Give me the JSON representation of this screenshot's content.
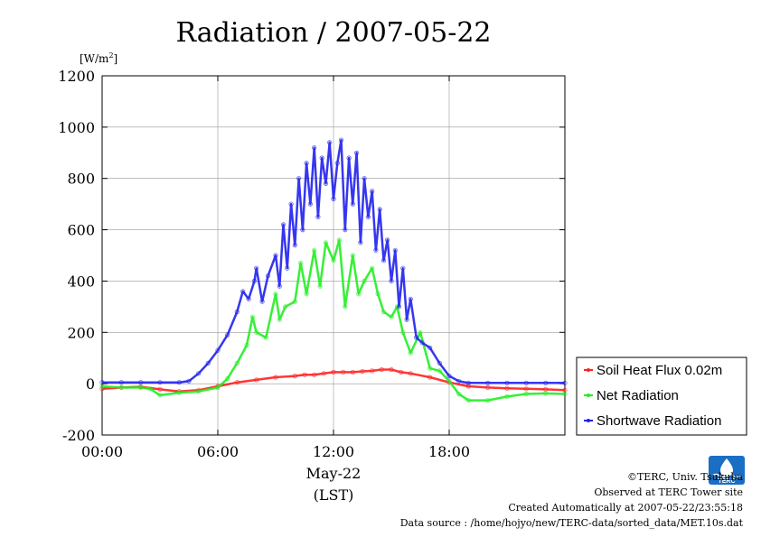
{
  "chart_data": {
    "type": "line",
    "title": "Radiation / 2007-05-22",
    "ylabel": "[W/m²]",
    "ylabel_base": "[W/m",
    "ylabel_sup": "2",
    "ylabel_close": "]",
    "xlabel_date": "May-22",
    "xlabel_unit": "(LST)",
    "xlim": [
      0,
      24
    ],
    "ylim": [
      -200,
      1200
    ],
    "grid": true,
    "legend_position": "right-bottom",
    "x_ticks": [
      {
        "value": 0,
        "label": "00:00"
      },
      {
        "value": 6,
        "label": "06:00"
      },
      {
        "value": 12,
        "label": "12:00"
      },
      {
        "value": 18,
        "label": "18:00"
      }
    ],
    "y_ticks": [
      {
        "value": -200,
        "label": "-200"
      },
      {
        "value": 0,
        "label": "0"
      },
      {
        "value": 200,
        "label": "200"
      },
      {
        "value": 400,
        "label": "400"
      },
      {
        "value": 600,
        "label": "600"
      },
      {
        "value": 800,
        "label": "800"
      },
      {
        "value": 1000,
        "label": "1000"
      },
      {
        "value": 1200,
        "label": "1200"
      }
    ],
    "series": [
      {
        "name": "Soil Heat Flux 0.02m",
        "color": "#ff2020",
        "x": [
          0,
          1,
          2,
          3,
          4,
          5,
          6,
          7,
          8,
          9,
          10,
          10.5,
          11,
          11.5,
          12,
          12.5,
          13,
          13.5,
          14,
          14.5,
          15,
          15.5,
          16,
          17,
          18,
          19,
          20,
          21,
          22,
          23,
          24
        ],
        "y": [
          -20,
          -15,
          -12,
          -22,
          -30,
          -25,
          -10,
          5,
          15,
          25,
          30,
          35,
          35,
          40,
          45,
          45,
          45,
          48,
          50,
          55,
          55,
          45,
          40,
          25,
          5,
          -10,
          -15,
          -18,
          -20,
          -22,
          -25
        ]
      },
      {
        "name": "Net Radiation",
        "color": "#20ee20",
        "x": [
          0,
          1,
          2,
          2.5,
          3,
          4,
          5,
          6,
          6.5,
          7,
          7.5,
          7.8,
          8,
          8.5,
          9,
          9.2,
          9.5,
          10,
          10.3,
          10.6,
          11,
          11.3,
          11.6,
          12,
          12.3,
          12.6,
          13,
          13.3,
          13.6,
          14,
          14.3,
          14.6,
          15,
          15.3,
          15.6,
          16,
          16.5,
          17,
          17.5,
          18,
          18.5,
          19,
          20,
          21,
          22,
          23,
          24
        ],
        "y": [
          -10,
          -15,
          -15,
          -20,
          -45,
          -35,
          -30,
          -15,
          20,
          80,
          150,
          260,
          200,
          180,
          350,
          250,
          300,
          320,
          470,
          350,
          520,
          380,
          550,
          480,
          560,
          300,
          500,
          350,
          400,
          450,
          350,
          280,
          260,
          300,
          200,
          120,
          200,
          60,
          50,
          10,
          -40,
          -65,
          -65,
          -50,
          -40,
          -38,
          -40
        ]
      },
      {
        "name": "Shortwave Radiation",
        "color": "#2020ee",
        "x": [
          0,
          1,
          2,
          3,
          4,
          4.5,
          5,
          5.5,
          6,
          6.5,
          7,
          7.3,
          7.6,
          7.9,
          8,
          8.3,
          8.6,
          9,
          9.2,
          9.4,
          9.6,
          9.8,
          10,
          10.2,
          10.4,
          10.6,
          10.8,
          11,
          11.2,
          11.4,
          11.6,
          11.8,
          12,
          12.2,
          12.4,
          12.6,
          12.8,
          13,
          13.2,
          13.4,
          13.6,
          13.8,
          14,
          14.2,
          14.4,
          14.6,
          14.8,
          15,
          15.2,
          15.4,
          15.6,
          15.8,
          16,
          16.3,
          16.6,
          17,
          17.5,
          18,
          18.5,
          19,
          20,
          21,
          22,
          23,
          24
        ],
        "y": [
          5,
          5,
          5,
          5,
          5,
          10,
          40,
          80,
          130,
          190,
          280,
          360,
          330,
          400,
          450,
          320,
          420,
          500,
          380,
          620,
          450,
          700,
          540,
          800,
          600,
          860,
          700,
          920,
          650,
          880,
          780,
          940,
          720,
          860,
          950,
          600,
          880,
          700,
          900,
          550,
          800,
          650,
          750,
          520,
          680,
          480,
          560,
          400,
          520,
          300,
          450,
          250,
          330,
          180,
          160,
          140,
          80,
          30,
          10,
          3,
          3,
          3,
          3,
          3,
          3
        ]
      }
    ]
  },
  "footer": {
    "copyright": "©TERC, Univ. Tsukuba",
    "site": "Observed at TERC Tower site",
    "created": "Created Automatically at 2007-05-22/23:55:18",
    "source": "Data source : /home/hojyo/new/TERC-data/sorted_data/MET.10s.dat",
    "logo_text": "TERC"
  }
}
